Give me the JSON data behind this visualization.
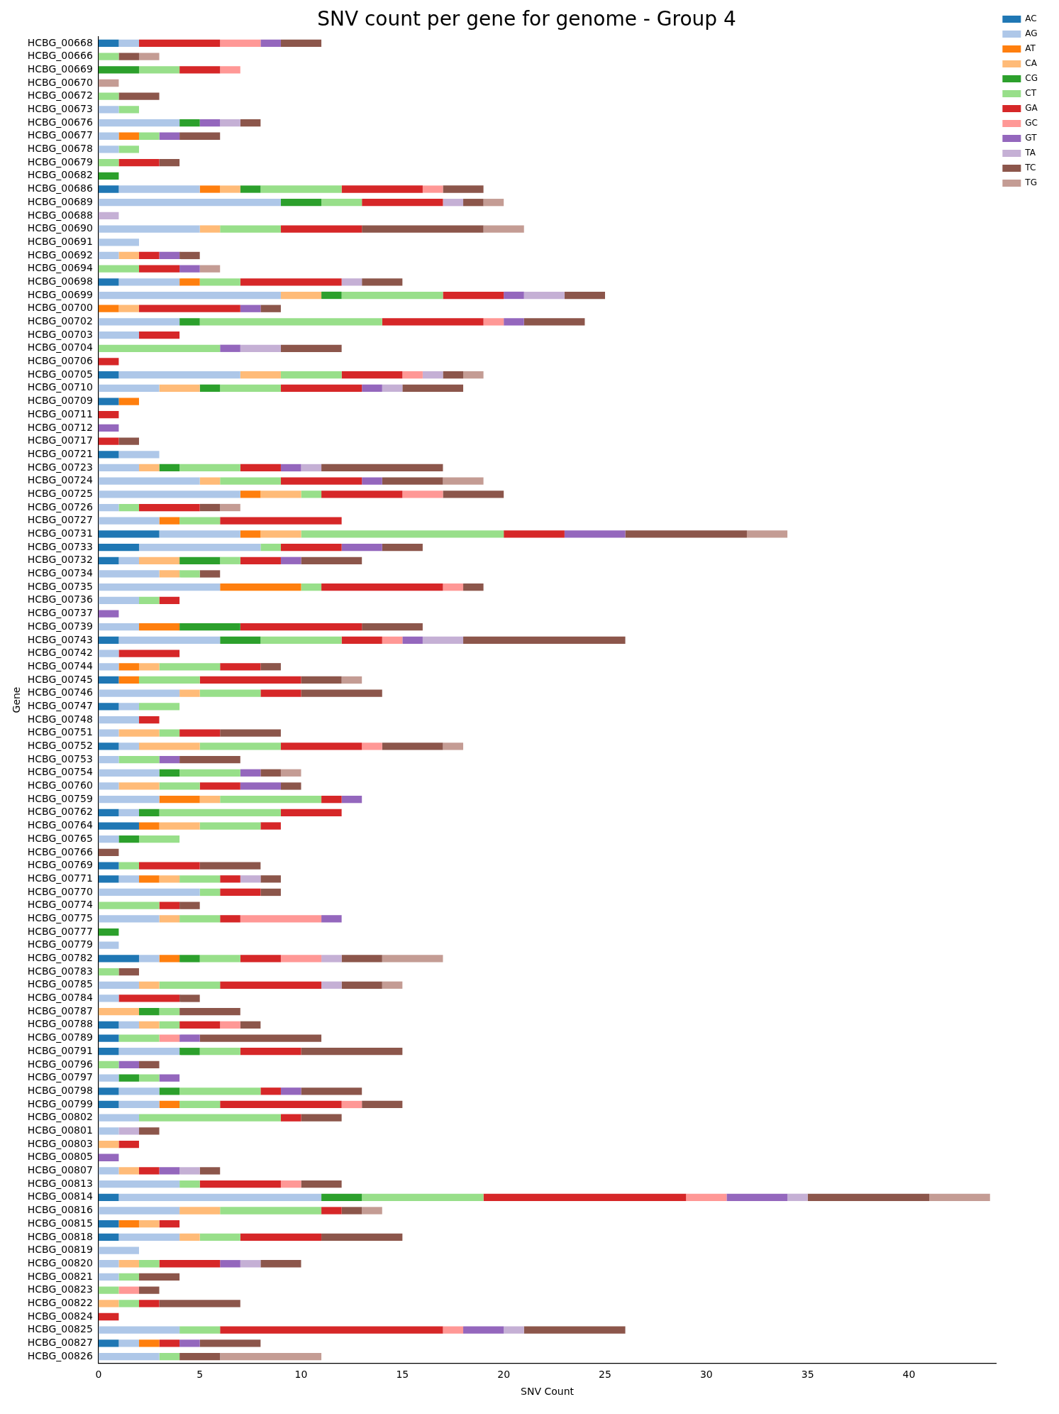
{
  "chart_data": {
    "type": "bar",
    "orientation": "horizontal",
    "stacked": true,
    "title": "SNV count per gene for genome - Group 4",
    "xlabel": "SNV Count",
    "ylabel": "Gene",
    "legend": "top right",
    "grid": false,
    "xlim": [
      0,
      44.3
    ],
    "xticks": [
      0,
      5,
      10,
      15,
      20,
      25,
      30,
      35,
      40
    ],
    "categories": [
      "HCBG_00668",
      "HCBG_00666",
      "HCBG_00669",
      "HCBG_00670",
      "HCBG_00672",
      "HCBG_00673",
      "HCBG_00676",
      "HCBG_00677",
      "HCBG_00678",
      "HCBG_00679",
      "HCBG_00682",
      "HCBG_00686",
      "HCBG_00689",
      "HCBG_00688",
      "HCBG_00690",
      "HCBG_00691",
      "HCBG_00692",
      "HCBG_00694",
      "HCBG_00698",
      "HCBG_00699",
      "HCBG_00700",
      "HCBG_00702",
      "HCBG_00703",
      "HCBG_00704",
      "HCBG_00706",
      "HCBG_00705",
      "HCBG_00710",
      "HCBG_00709",
      "HCBG_00711",
      "HCBG_00712",
      "HCBG_00717",
      "HCBG_00721",
      "HCBG_00723",
      "HCBG_00724",
      "HCBG_00725",
      "HCBG_00726",
      "HCBG_00727",
      "HCBG_00731",
      "HCBG_00733",
      "HCBG_00732",
      "HCBG_00734",
      "HCBG_00735",
      "HCBG_00736",
      "HCBG_00737",
      "HCBG_00739",
      "HCBG_00743",
      "HCBG_00742",
      "HCBG_00744",
      "HCBG_00745",
      "HCBG_00746",
      "HCBG_00747",
      "HCBG_00748",
      "HCBG_00751",
      "HCBG_00752",
      "HCBG_00753",
      "HCBG_00754",
      "HCBG_00760",
      "HCBG_00759",
      "HCBG_00762",
      "HCBG_00764",
      "HCBG_00765",
      "HCBG_00766",
      "HCBG_00769",
      "HCBG_00771",
      "HCBG_00770",
      "HCBG_00774",
      "HCBG_00775",
      "HCBG_00777",
      "HCBG_00779",
      "HCBG_00782",
      "HCBG_00783",
      "HCBG_00785",
      "HCBG_00784",
      "HCBG_00787",
      "HCBG_00788",
      "HCBG_00789",
      "HCBG_00791",
      "HCBG_00796",
      "HCBG_00797",
      "HCBG_00798",
      "HCBG_00799",
      "HCBG_00802",
      "HCBG_00801",
      "HCBG_00803",
      "HCBG_00805",
      "HCBG_00807",
      "HCBG_00813",
      "HCBG_00814",
      "HCBG_00816",
      "HCBG_00815",
      "HCBG_00818",
      "HCBG_00819",
      "HCBG_00820",
      "HCBG_00821",
      "HCBG_00823",
      "HCBG_00822",
      "HCBG_00824",
      "HCBG_00825",
      "HCBG_00827",
      "HCBG_00826"
    ],
    "series": [
      {
        "name": "AC",
        "color": "#1f77b4",
        "values": [
          1,
          0,
          0,
          0,
          0,
          0,
          0,
          0,
          0,
          0,
          0,
          1,
          0,
          0,
          0,
          0,
          0,
          0,
          1,
          0,
          0,
          0,
          0,
          0,
          0,
          1,
          0,
          1,
          0,
          0,
          0,
          1,
          0,
          0,
          0,
          0,
          0,
          3,
          2,
          1,
          0,
          0,
          0,
          0,
          0,
          1,
          0,
          0,
          1,
          0,
          1,
          0,
          0,
          1,
          0,
          0,
          0,
          0,
          1,
          2,
          0,
          0,
          1,
          1,
          0,
          0,
          0,
          0,
          0,
          2,
          0,
          0,
          0,
          0,
          1,
          1,
          1,
          0,
          0,
          1,
          1,
          0,
          0,
          0,
          0,
          0,
          0,
          1,
          0,
          1,
          1,
          0,
          0,
          0,
          0,
          0,
          0,
          0,
          1,
          0
        ]
      },
      {
        "name": "AG",
        "color": "#aec7e8",
        "values": [
          1,
          0,
          0,
          0,
          0,
          1,
          4,
          1,
          1,
          0,
          0,
          4,
          9,
          0,
          5,
          2,
          1,
          0,
          3,
          9,
          0,
          4,
          2,
          0,
          0,
          6,
          3,
          0,
          0,
          0,
          0,
          2,
          2,
          5,
          7,
          1,
          3,
          4,
          6,
          1,
          3,
          6,
          2,
          0,
          2,
          5,
          1,
          1,
          0,
          4,
          1,
          2,
          1,
          1,
          1,
          3,
          1,
          3,
          1,
          0,
          1,
          0,
          0,
          1,
          5,
          0,
          3,
          0,
          1,
          1,
          0,
          2,
          1,
          0,
          1,
          0,
          3,
          0,
          1,
          2,
          2,
          2,
          1,
          0,
          0,
          1,
          4,
          10,
          4,
          0,
          3,
          2,
          1,
          1,
          0,
          0,
          0,
          4,
          1,
          3
        ]
      },
      {
        "name": "AT",
        "color": "#ff7f0e",
        "values": [
          0,
          0,
          0,
          0,
          0,
          0,
          0,
          1,
          0,
          0,
          0,
          1,
          0,
          0,
          0,
          0,
          0,
          0,
          1,
          0,
          1,
          0,
          0,
          0,
          0,
          0,
          0,
          1,
          0,
          0,
          0,
          0,
          0,
          0,
          1,
          0,
          1,
          1,
          0,
          0,
          0,
          4,
          0,
          0,
          2,
          0,
          0,
          1,
          1,
          0,
          0,
          0,
          0,
          0,
          0,
          0,
          0,
          2,
          0,
          1,
          0,
          0,
          0,
          1,
          0,
          0,
          0,
          0,
          0,
          1,
          0,
          0,
          0,
          0,
          0,
          0,
          0,
          0,
          0,
          0,
          1,
          0,
          0,
          0,
          0,
          0,
          0,
          0,
          0,
          1,
          0,
          0,
          0,
          0,
          0,
          0,
          0,
          0,
          1,
          0
        ]
      },
      {
        "name": "CA",
        "color": "#ffbb78",
        "values": [
          0,
          0,
          0,
          0,
          0,
          0,
          0,
          0,
          0,
          0,
          0,
          1,
          0,
          0,
          1,
          0,
          1,
          0,
          0,
          2,
          1,
          0,
          0,
          0,
          0,
          2,
          2,
          0,
          0,
          0,
          0,
          0,
          1,
          1,
          2,
          0,
          0,
          2,
          0,
          2,
          1,
          0,
          0,
          0,
          0,
          0,
          0,
          1,
          0,
          1,
          0,
          0,
          2,
          3,
          0,
          0,
          2,
          1,
          0,
          2,
          0,
          0,
          0,
          1,
          0,
          0,
          1,
          0,
          0,
          0,
          0,
          1,
          0,
          2,
          1,
          0,
          0,
          0,
          0,
          0,
          0,
          0,
          0,
          1,
          0,
          1,
          0,
          0,
          2,
          1,
          1,
          0,
          1,
          0,
          0,
          1,
          0,
          0,
          0,
          0
        ]
      },
      {
        "name": "CG",
        "color": "#2ca02c",
        "values": [
          0,
          0,
          2,
          0,
          0,
          0,
          1,
          0,
          0,
          0,
          1,
          1,
          2,
          0,
          0,
          0,
          0,
          0,
          0,
          1,
          0,
          1,
          0,
          0,
          0,
          0,
          1,
          0,
          0,
          0,
          0,
          0,
          1,
          0,
          0,
          0,
          0,
          0,
          0,
          2,
          0,
          0,
          0,
          0,
          3,
          2,
          0,
          0,
          0,
          0,
          0,
          0,
          0,
          0,
          0,
          1,
          0,
          0,
          1,
          0,
          1,
          0,
          0,
          0,
          0,
          0,
          0,
          1,
          0,
          1,
          0,
          0,
          0,
          1,
          0,
          0,
          1,
          0,
          1,
          1,
          0,
          0,
          0,
          0,
          0,
          0,
          0,
          2,
          0,
          0,
          0,
          0,
          0,
          0,
          0,
          0,
          0,
          0,
          0,
          0
        ]
      },
      {
        "name": "CT",
        "color": "#98df8a",
        "values": [
          0,
          1,
          2,
          0,
          1,
          1,
          0,
          1,
          1,
          1,
          0,
          4,
          2,
          0,
          3,
          0,
          0,
          2,
          2,
          5,
          0,
          9,
          0,
          6,
          0,
          3,
          3,
          0,
          0,
          0,
          0,
          0,
          3,
          3,
          1,
          1,
          2,
          10,
          1,
          1,
          1,
          1,
          1,
          0,
          0,
          4,
          0,
          3,
          3,
          3,
          2,
          0,
          1,
          4,
          2,
          3,
          2,
          5,
          6,
          3,
          2,
          0,
          1,
          2,
          1,
          3,
          2,
          0,
          0,
          2,
          1,
          3,
          0,
          1,
          1,
          2,
          2,
          1,
          1,
          4,
          2,
          7,
          0,
          0,
          0,
          0,
          1,
          6,
          5,
          0,
          2,
          0,
          1,
          1,
          1,
          1,
          0,
          2,
          0,
          1
        ]
      },
      {
        "name": "GA",
        "color": "#d62728",
        "values": [
          4,
          0,
          2,
          0,
          0,
          0,
          0,
          0,
          0,
          2,
          0,
          4,
          4,
          0,
          4,
          0,
          1,
          2,
          5,
          3,
          5,
          5,
          2,
          0,
          1,
          3,
          4,
          0,
          1,
          0,
          1,
          0,
          2,
          4,
          4,
          3,
          6,
          3,
          3,
          2,
          0,
          6,
          1,
          0,
          6,
          2,
          3,
          2,
          5,
          2,
          0,
          1,
          2,
          4,
          0,
          0,
          2,
          1,
          3,
          1,
          0,
          0,
          3,
          1,
          2,
          1,
          1,
          0,
          0,
          2,
          0,
          5,
          3,
          0,
          2,
          0,
          3,
          0,
          0,
          1,
          6,
          1,
          0,
          1,
          0,
          1,
          4,
          10,
          1,
          1,
          4,
          0,
          3,
          0,
          0,
          1,
          1,
          11,
          1,
          0
        ]
      },
      {
        "name": "GC",
        "color": "#ff9896",
        "values": [
          2,
          0,
          1,
          0,
          0,
          0,
          0,
          0,
          0,
          0,
          0,
          1,
          0,
          0,
          0,
          0,
          0,
          0,
          0,
          0,
          0,
          1,
          0,
          0,
          0,
          1,
          0,
          0,
          0,
          0,
          0,
          0,
          0,
          0,
          2,
          0,
          0,
          0,
          0,
          0,
          0,
          1,
          0,
          0,
          0,
          1,
          0,
          0,
          0,
          0,
          0,
          0,
          0,
          1,
          0,
          0,
          0,
          0,
          0,
          0,
          0,
          0,
          0,
          0,
          0,
          0,
          4,
          0,
          0,
          2,
          0,
          0,
          0,
          0,
          1,
          1,
          0,
          0,
          0,
          0,
          1,
          0,
          0,
          0,
          0,
          0,
          1,
          2,
          0,
          0,
          0,
          0,
          0,
          0,
          1,
          0,
          0,
          1,
          0,
          0
        ]
      },
      {
        "name": "GT",
        "color": "#9467bd",
        "values": [
          1,
          0,
          0,
          0,
          0,
          0,
          1,
          1,
          0,
          0,
          0,
          0,
          0,
          0,
          0,
          0,
          1,
          1,
          0,
          1,
          1,
          1,
          0,
          1,
          0,
          0,
          1,
          0,
          0,
          1,
          0,
          0,
          1,
          1,
          0,
          0,
          0,
          3,
          2,
          1,
          0,
          0,
          0,
          1,
          0,
          1,
          0,
          0,
          0,
          0,
          0,
          0,
          0,
          0,
          1,
          1,
          2,
          1,
          0,
          0,
          0,
          0,
          0,
          0,
          0,
          0,
          1,
          0,
          0,
          0,
          0,
          0,
          0,
          0,
          0,
          1,
          0,
          1,
          1,
          1,
          0,
          0,
          0,
          0,
          1,
          1,
          0,
          3,
          0,
          0,
          0,
          0,
          1,
          0,
          0,
          0,
          0,
          2,
          1,
          0
        ]
      },
      {
        "name": "TA",
        "color": "#c5b0d5",
        "values": [
          0,
          0,
          0,
          0,
          0,
          0,
          1,
          0,
          0,
          0,
          0,
          0,
          1,
          1,
          0,
          0,
          0,
          0,
          1,
          2,
          0,
          0,
          0,
          2,
          0,
          1,
          1,
          0,
          0,
          0,
          0,
          0,
          1,
          0,
          0,
          0,
          0,
          0,
          0,
          0,
          0,
          0,
          0,
          0,
          0,
          2,
          0,
          0,
          0,
          0,
          0,
          0,
          0,
          0,
          0,
          0,
          0,
          0,
          0,
          0,
          0,
          0,
          0,
          1,
          0,
          0,
          0,
          0,
          0,
          1,
          0,
          1,
          0,
          0,
          0,
          0,
          0,
          0,
          0,
          0,
          0,
          0,
          1,
          0,
          0,
          1,
          0,
          1,
          0,
          0,
          0,
          0,
          1,
          0,
          0,
          0,
          0,
          1,
          0,
          0
        ]
      },
      {
        "name": "TC",
        "color": "#8c564b",
        "values": [
          2,
          1,
          0,
          0,
          2,
          0,
          1,
          2,
          0,
          1,
          0,
          2,
          1,
          0,
          6,
          0,
          1,
          0,
          2,
          2,
          1,
          3,
          0,
          3,
          0,
          1,
          3,
          0,
          0,
          0,
          1,
          0,
          6,
          3,
          3,
          1,
          0,
          6,
          2,
          3,
          1,
          1,
          0,
          0,
          3,
          8,
          0,
          1,
          2,
          4,
          0,
          0,
          3,
          3,
          3,
          1,
          1,
          0,
          0,
          0,
          0,
          1,
          3,
          1,
          1,
          1,
          0,
          0,
          0,
          2,
          1,
          2,
          1,
          3,
          1,
          6,
          5,
          1,
          0,
          3,
          2,
          2,
          1,
          0,
          0,
          1,
          2,
          6,
          1,
          0,
          4,
          0,
          2,
          2,
          1,
          4,
          0,
          5,
          3,
          2
        ]
      },
      {
        "name": "TG",
        "color": "#c49c94",
        "values": [
          0,
          1,
          0,
          1,
          0,
          0,
          0,
          0,
          0,
          0,
          0,
          0,
          1,
          0,
          2,
          0,
          0,
          1,
          0,
          0,
          0,
          0,
          0,
          0,
          0,
          1,
          0,
          0,
          0,
          0,
          0,
          0,
          0,
          2,
          0,
          1,
          0,
          2,
          0,
          0,
          0,
          0,
          0,
          0,
          0,
          0,
          0,
          0,
          1,
          0,
          0,
          0,
          0,
          1,
          0,
          1,
          0,
          0,
          0,
          0,
          0,
          0,
          0,
          0,
          0,
          0,
          0,
          0,
          0,
          3,
          0,
          1,
          0,
          0,
          0,
          0,
          0,
          0,
          0,
          0,
          0,
          0,
          0,
          0,
          0,
          0,
          0,
          3,
          1,
          0,
          0,
          0,
          0,
          0,
          0,
          0,
          0,
          0,
          0,
          5
        ]
      }
    ]
  }
}
